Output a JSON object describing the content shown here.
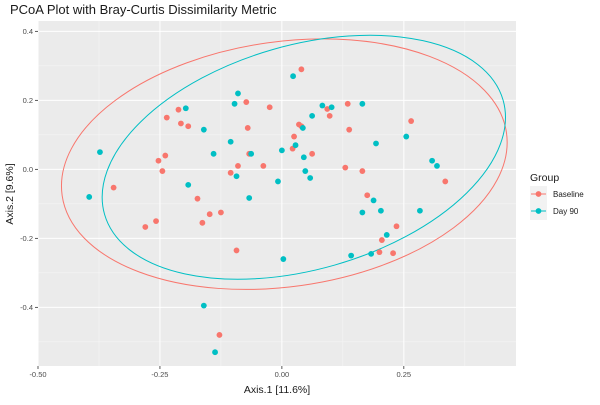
{
  "chart_data": {
    "type": "scatter",
    "title": "PCoA Plot with Bray-Curtis Dissimilarity Metric",
    "xlabel": "Axis.1   [11.6%]",
    "ylabel": "Axis.2   [9.6%]",
    "xlim": [
      -0.5,
      0.48
    ],
    "ylim": [
      -0.57,
      0.43
    ],
    "x_ticks": [
      "-0.50",
      "-0.25",
      "0.00",
      "0.25"
    ],
    "x_tick_values": [
      -0.5,
      -0.25,
      0,
      0.25
    ],
    "y_ticks": [
      "0.4",
      "0.2",
      "0.0",
      "-0.2",
      "-0.4"
    ],
    "y_tick_values": [
      0.4,
      0.2,
      0,
      -0.2,
      -0.4
    ],
    "grid": true,
    "panel_background": "#ebebeb",
    "legend": {
      "title": "Group",
      "placement": "right"
    },
    "series": [
      {
        "name": "Baseline",
        "color": "#F8766D",
        "points": [
          [
            -0.236,
            0.15
          ],
          [
            -0.212,
            0.173
          ],
          [
            -0.207,
            0.133
          ],
          [
            -0.192,
            0.125
          ],
          [
            -0.239,
            0.04
          ],
          [
            -0.253,
            0.025
          ],
          [
            -0.245,
            -0.005
          ],
          [
            -0.345,
            -0.053
          ],
          [
            -0.258,
            -0.15
          ],
          [
            -0.28,
            -0.167
          ],
          [
            -0.173,
            -0.085
          ],
          [
            -0.163,
            -0.155
          ],
          [
            -0.148,
            -0.13
          ],
          [
            -0.125,
            -0.125
          ],
          [
            -0.128,
            -0.48
          ],
          [
            -0.093,
            -0.235
          ],
          [
            -0.105,
            -0.01
          ],
          [
            -0.09,
            0.01
          ],
          [
            -0.067,
            0.045
          ],
          [
            -0.073,
            0.195
          ],
          [
            -0.07,
            0.12
          ],
          [
            -0.038,
            0.01
          ],
          [
            -0.025,
            0.18
          ],
          [
            0.022,
            0.06
          ],
          [
            0.025,
            0.095
          ],
          [
            0.035,
            0.13
          ],
          [
            0.04,
            0.125
          ],
          [
            0.062,
            0.045
          ],
          [
            0.04,
            0.29
          ],
          [
            0.093,
            0.175
          ],
          [
            0.098,
            0.155
          ],
          [
            0.13,
            0.005
          ],
          [
            0.135,
            0.19
          ],
          [
            0.138,
            0.115
          ],
          [
            0.165,
            -0.005
          ],
          [
            0.175,
            -0.075
          ],
          [
            0.2,
            -0.24
          ],
          [
            0.205,
            -0.205
          ],
          [
            0.235,
            -0.165
          ],
          [
            0.228,
            -0.243
          ],
          [
            0.265,
            0.14
          ],
          [
            0.335,
            -0.035
          ]
        ]
      },
      {
        "name": "Day 90",
        "color": "#00BFC4",
        "points": [
          [
            -0.373,
            0.05
          ],
          [
            -0.395,
            -0.08
          ],
          [
            -0.197,
            0.177
          ],
          [
            -0.192,
            -0.045
          ],
          [
            -0.16,
            0.115
          ],
          [
            -0.14,
            0.045
          ],
          [
            -0.16,
            -0.395
          ],
          [
            -0.137,
            -0.53
          ],
          [
            -0.105,
            0.08
          ],
          [
            -0.097,
            0.19
          ],
          [
            -0.09,
            0.22
          ],
          [
            -0.093,
            -0.02
          ],
          [
            -0.067,
            -0.083
          ],
          [
            -0.063,
            0.045
          ],
          [
            -0.008,
            -0.035
          ],
          [
            0.0,
            0.055
          ],
          [
            0.003,
            -0.26
          ],
          [
            0.023,
            0.27
          ],
          [
            0.028,
            0.07
          ],
          [
            0.043,
            0.12
          ],
          [
            0.045,
            0.035
          ],
          [
            0.048,
            -0.005
          ],
          [
            0.058,
            -0.025
          ],
          [
            0.062,
            0.155
          ],
          [
            0.083,
            0.185
          ],
          [
            0.102,
            0.18
          ],
          [
            0.142,
            -0.25
          ],
          [
            0.165,
            0.19
          ],
          [
            0.165,
            -0.125
          ],
          [
            0.183,
            -0.245
          ],
          [
            0.188,
            -0.09
          ],
          [
            0.193,
            0.075
          ],
          [
            0.203,
            -0.12
          ],
          [
            0.215,
            -0.19
          ],
          [
            0.255,
            0.095
          ],
          [
            0.283,
            -0.12
          ],
          [
            0.308,
            0.025
          ],
          [
            0.318,
            0.01
          ]
        ]
      }
    ],
    "ellipses": [
      {
        "group": "Baseline",
        "center": [
          0.005,
          0.015
        ],
        "rx": 0.46,
        "ry": 0.355,
        "rotation_deg": -8
      },
      {
        "group": "Day 90",
        "center": [
          0.045,
          0.035
        ],
        "rx": 0.425,
        "ry": 0.325,
        "rotation_deg": -16
      }
    ]
  }
}
